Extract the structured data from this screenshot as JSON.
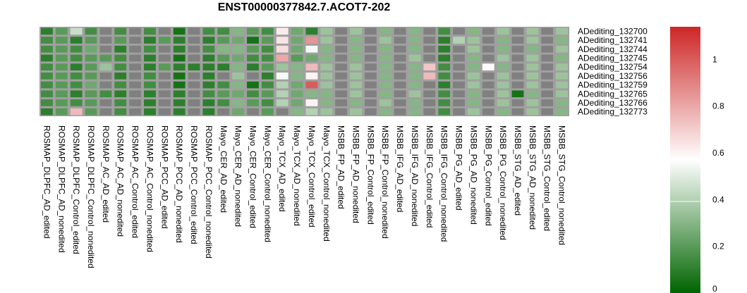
{
  "chart_data": {
    "type": "heatmap",
    "title": "ENST00000377842.7.ACOT7-202",
    "rows": [
      "ADediting_132700",
      "ADediting_132741",
      "ADediting_132744",
      "ADediting_132745",
      "ADediting_132754",
      "ADediting_132756",
      "ADediting_132759",
      "ADediting_132765",
      "ADediting_132766",
      "ADediting_132773"
    ],
    "columns": [
      "ROSMAP_DLPFC_AD_edited",
      "ROSMAP_DLPFC_AD_nonedited",
      "ROSMAP_DLPFC_Control_edited",
      "ROSMAP_DLPFC_Control_nonedited",
      "ROSMAP_AC_AD_edited",
      "ROSMAP_AC_AD_nonedited",
      "ROSMAP_AC_Control_edited",
      "ROSMAP_AC_Control_nonedited",
      "ROSMAP_PCC_AD_edited",
      "ROSMAP_PCC_AD_nonedited",
      "ROSMAP_PCC_Control_edited",
      "ROSMAP_PCC_Control_nonedited",
      "Mayo_CER_AD_edited",
      "Mayo_CER_AD_nonedited",
      "Mayo_CER_Control_edited",
      "Mayo_CER_Control_nonedited",
      "Mayo_TCX_AD_edited",
      "Mayo_TCX_AD_nonedited",
      "Mayo_TCX_Control_edited",
      "Mayo_TCX_Control_nonedited",
      "MSBB_FP_AD_edited",
      "MSBB_FP_AD_nonedited",
      "MSBB_FP_Control_edited",
      "MSBB_FP_Control_nonedited",
      "MSBB_IFG_AD_edited",
      "MSBB_IFG_AD_nonedited",
      "MSBB_IFG_Control_edited",
      "MSBB_IFG_Control_nonedited",
      "MSBB_PG_AD_edited",
      "MSBB_PG_AD_nonedited",
      "MSBB_PG_Control_edited",
      "MSBB_PG_Control_nonedited",
      "MSBB_STG_AD_edited",
      "MSBB_STG_AD_nonedited",
      "MSBB_STG_Control_edited",
      "MSBB_STG_Control_nonedited"
    ],
    "values": [
      [
        0.1,
        0.2,
        0.45,
        0.15,
        null,
        0.15,
        null,
        0.15,
        null,
        0.05,
        null,
        0.15,
        0.15,
        0.3,
        0.2,
        0.15,
        0.62,
        0.25,
        0.1,
        0.35,
        null,
        0.35,
        null,
        0.3,
        null,
        0.3,
        null,
        0.15,
        null,
        0.3,
        null,
        0.35,
        null,
        0.35,
        null,
        0.35
      ],
      [
        0.15,
        0.2,
        0.1,
        0.2,
        null,
        0.2,
        null,
        0.1,
        0.2,
        0.1,
        null,
        0.1,
        0.2,
        0.25,
        0.05,
        0.2,
        0.64,
        0.25,
        0.85,
        0.35,
        null,
        0.3,
        null,
        0.35,
        null,
        0.3,
        null,
        0.1,
        0.4,
        0.35,
        null,
        0.3,
        null,
        0.35,
        null,
        0.3
      ],
      [
        0.15,
        0.2,
        0.15,
        0.25,
        null,
        0.1,
        null,
        0.15,
        null,
        0.1,
        null,
        0.15,
        0.3,
        0.3,
        0.2,
        0.15,
        0.66,
        0.25,
        0.55,
        0.3,
        null,
        0.3,
        null,
        0.3,
        null,
        0.3,
        null,
        0.1,
        null,
        0.35,
        null,
        0.3,
        null,
        0.3,
        null,
        0.35
      ],
      [
        0.1,
        0.2,
        0.15,
        0.2,
        0.2,
        0.15,
        null,
        0.1,
        null,
        0.05,
        null,
        0.1,
        0.2,
        0.25,
        0.15,
        0.15,
        0.8,
        0.2,
        0.25,
        0.3,
        null,
        0.3,
        null,
        0.3,
        null,
        0.35,
        null,
        0.1,
        null,
        0.3,
        null,
        0.35,
        null,
        0.35,
        null,
        0.3
      ],
      [
        0.15,
        0.2,
        0.1,
        0.2,
        0.35,
        0.15,
        null,
        0.1,
        0.2,
        0.1,
        0.1,
        0.1,
        0.1,
        0.3,
        0.1,
        0.2,
        0.35,
        0.3,
        0.75,
        0.35,
        null,
        0.35,
        null,
        0.3,
        null,
        0.3,
        0.72,
        0.15,
        null,
        0.3,
        0.58,
        0.3,
        null,
        0.35,
        null,
        0.35
      ],
      [
        0.15,
        0.2,
        0.15,
        0.2,
        null,
        0.1,
        null,
        0.15,
        null,
        0.05,
        null,
        0.1,
        null,
        0.35,
        null,
        0.1,
        0.55,
        0.3,
        0.6,
        0.35,
        null,
        0.35,
        null,
        0.3,
        null,
        0.3,
        0.75,
        0.15,
        null,
        0.35,
        null,
        0.35,
        null,
        0.35,
        null,
        0.35
      ],
      [
        0.15,
        0.2,
        0.15,
        0.25,
        null,
        0.15,
        null,
        0.15,
        null,
        0.05,
        null,
        0.1,
        0.15,
        0.3,
        0.05,
        0.15,
        0.4,
        0.25,
        1.0,
        0.35,
        null,
        0.35,
        null,
        0.3,
        null,
        0.3,
        null,
        0.1,
        null,
        0.35,
        null,
        0.35,
        null,
        0.35,
        null,
        0.35
      ],
      [
        0.15,
        0.2,
        0.1,
        0.2,
        0.15,
        0.1,
        null,
        0.1,
        null,
        0.1,
        null,
        0.15,
        0.2,
        0.25,
        0.15,
        0.2,
        0.4,
        0.25,
        0.3,
        0.3,
        null,
        0.35,
        null,
        0.3,
        null,
        0.35,
        null,
        0.15,
        null,
        0.3,
        null,
        0.35,
        0.05,
        0.3,
        null,
        0.35
      ],
      [
        0.15,
        0.2,
        0.15,
        0.2,
        null,
        0.15,
        null,
        0.1,
        null,
        0.1,
        null,
        0.1,
        0.15,
        0.3,
        0.2,
        0.15,
        0.4,
        0.25,
        0.6,
        0.3,
        null,
        0.3,
        null,
        0.35,
        null,
        0.3,
        null,
        0.15,
        null,
        0.3,
        null,
        0.35,
        null,
        0.35,
        null,
        0.3
      ],
      [
        0.1,
        0.2,
        0.75,
        0.2,
        null,
        0.15,
        null,
        0.1,
        null,
        0.1,
        null,
        0.1,
        null,
        0.25,
        null,
        0.2,
        null,
        0.3,
        0.4,
        0.35,
        null,
        0.35,
        null,
        0.3,
        null,
        0.3,
        null,
        0.15,
        null,
        0.35,
        null,
        0.3,
        null,
        0.35,
        null,
        0.3
      ]
    ],
    "colorscale": {
      "low": "#006400",
      "mid": "#FFFFFF",
      "high": "#CD2626",
      "na": "#808080",
      "mid_value": 0.57
    },
    "legend_ticks": [
      0,
      0.2,
      0.4,
      0.6,
      0.8,
      1
    ],
    "legend_range": [
      0,
      1.14
    ]
  }
}
